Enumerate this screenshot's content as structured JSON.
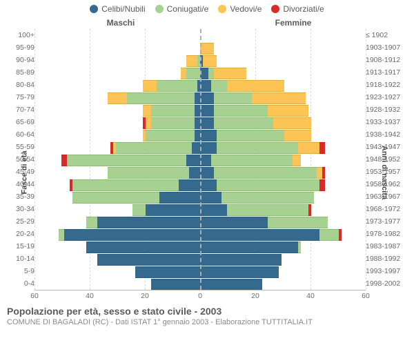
{
  "legend": [
    {
      "label": "Celibi/Nubili",
      "color": "#36698e"
    },
    {
      "label": "Coniugati/e",
      "color": "#a7d190"
    },
    {
      "label": "Vedovi/e",
      "color": "#fcc454"
    },
    {
      "label": "Divorziati/e",
      "color": "#d92a2a"
    }
  ],
  "headers": {
    "left": "Maschi",
    "right": "Femmine"
  },
  "axis_titles": {
    "left": "Fasce di età",
    "right": "Anni di nascita"
  },
  "x_axis": {
    "min": -60,
    "max": 60,
    "ticks": [
      60,
      40,
      20,
      0,
      20,
      40,
      60
    ]
  },
  "title": "Popolazione per età, sesso e stato civile - 2003",
  "subtitle": "COMUNE DI BAGALADI (RC) - Dati ISTAT 1° gennaio 2003 - Elaborazione TUTTITALIA.IT",
  "colors": {
    "single": "#36698e",
    "married": "#a7d190",
    "widowed": "#fcc454",
    "divorced": "#d92a2a",
    "grid": "#dddddd",
    "centerline": "#b0b0b0",
    "bg": "#ffffff"
  },
  "rows": [
    {
      "age": "100+",
      "birth": "≤ 1902",
      "m": {
        "s": 0,
        "c": 0,
        "w": 0,
        "d": 0
      },
      "f": {
        "s": 0,
        "c": 0,
        "w": 0,
        "d": 0
      }
    },
    {
      "age": "95-99",
      "birth": "1903-1907",
      "m": {
        "s": 0,
        "c": 0,
        "w": 0,
        "d": 0
      },
      "f": {
        "s": 0,
        "c": 0,
        "w": 5,
        "d": 0
      }
    },
    {
      "age": "90-94",
      "birth": "1908-1912",
      "m": {
        "s": 0,
        "c": 1,
        "w": 4,
        "d": 0
      },
      "f": {
        "s": 1,
        "c": 0,
        "w": 5,
        "d": 0
      }
    },
    {
      "age": "85-89",
      "birth": "1913-1917",
      "m": {
        "s": 0,
        "c": 5,
        "w": 2,
        "d": 0
      },
      "f": {
        "s": 3,
        "c": 2,
        "w": 12,
        "d": 0
      }
    },
    {
      "age": "80-84",
      "birth": "1918-1922",
      "m": {
        "s": 1,
        "c": 15,
        "w": 5,
        "d": 0
      },
      "f": {
        "s": 4,
        "c": 6,
        "w": 21,
        "d": 0
      }
    },
    {
      "age": "75-79",
      "birth": "1923-1927",
      "m": {
        "s": 2,
        "c": 25,
        "w": 7,
        "d": 0
      },
      "f": {
        "s": 5,
        "c": 14,
        "w": 20,
        "d": 0
      }
    },
    {
      "age": "70-74",
      "birth": "1928-1932",
      "m": {
        "s": 2,
        "c": 16,
        "w": 3,
        "d": 0
      },
      "f": {
        "s": 5,
        "c": 20,
        "w": 15,
        "d": 0
      }
    },
    {
      "age": "65-69",
      "birth": "1933-1937",
      "m": {
        "s": 2,
        "c": 16,
        "w": 2,
        "d": 1
      },
      "f": {
        "s": 5,
        "c": 22,
        "w": 14,
        "d": 0
      }
    },
    {
      "age": "60-64",
      "birth": "1938-1942",
      "m": {
        "s": 2,
        "c": 18,
        "w": 1,
        "d": 0
      },
      "f": {
        "s": 6,
        "c": 25,
        "w": 10,
        "d": 0
      }
    },
    {
      "age": "55-59",
      "birth": "1943-1947",
      "m": {
        "s": 3,
        "c": 28,
        "w": 1,
        "d": 1
      },
      "f": {
        "s": 6,
        "c": 30,
        "w": 8,
        "d": 2
      }
    },
    {
      "age": "50-54",
      "birth": "1948-1952",
      "m": {
        "s": 5,
        "c": 44,
        "w": 0,
        "d": 2
      },
      "f": {
        "s": 4,
        "c": 30,
        "w": 3,
        "d": 0
      }
    },
    {
      "age": "45-49",
      "birth": "1953-1957",
      "m": {
        "s": 4,
        "c": 30,
        "w": 0,
        "d": 0
      },
      "f": {
        "s": 5,
        "c": 38,
        "w": 2,
        "d": 1
      }
    },
    {
      "age": "40-44",
      "birth": "1958-1962",
      "m": {
        "s": 8,
        "c": 39,
        "w": 0,
        "d": 1
      },
      "f": {
        "s": 6,
        "c": 38,
        "w": 0,
        "d": 2
      }
    },
    {
      "age": "35-39",
      "birth": "1963-1967",
      "m": {
        "s": 15,
        "c": 32,
        "w": 0,
        "d": 0
      },
      "f": {
        "s": 8,
        "c": 34,
        "w": 0,
        "d": 0
      }
    },
    {
      "age": "30-34",
      "birth": "1968-1972",
      "m": {
        "s": 20,
        "c": 5,
        "w": 0,
        "d": 0
      },
      "f": {
        "s": 10,
        "c": 30,
        "w": 0,
        "d": 1
      }
    },
    {
      "age": "25-29",
      "birth": "1973-1977",
      "m": {
        "s": 38,
        "c": 4,
        "w": 0,
        "d": 0
      },
      "f": {
        "s": 25,
        "c": 22,
        "w": 0,
        "d": 0
      }
    },
    {
      "age": "20-24",
      "birth": "1978-1982",
      "m": {
        "s": 50,
        "c": 2,
        "w": 0,
        "d": 0
      },
      "f": {
        "s": 44,
        "c": 7,
        "w": 0,
        "d": 1
      }
    },
    {
      "age": "15-19",
      "birth": "1983-1987",
      "m": {
        "s": 42,
        "c": 0,
        "w": 0,
        "d": 0
      },
      "f": {
        "s": 36,
        "c": 1,
        "w": 0,
        "d": 0
      }
    },
    {
      "age": "10-14",
      "birth": "1988-1992",
      "m": {
        "s": 38,
        "c": 0,
        "w": 0,
        "d": 0
      },
      "f": {
        "s": 30,
        "c": 0,
        "w": 0,
        "d": 0
      }
    },
    {
      "age": "5-9",
      "birth": "1993-1997",
      "m": {
        "s": 24,
        "c": 0,
        "w": 0,
        "d": 0
      },
      "f": {
        "s": 29,
        "c": 0,
        "w": 0,
        "d": 0
      }
    },
    {
      "age": "0-4",
      "birth": "1998-2002",
      "m": {
        "s": 18,
        "c": 0,
        "w": 0,
        "d": 0
      },
      "f": {
        "s": 23,
        "c": 0,
        "w": 0,
        "d": 0
      }
    }
  ]
}
